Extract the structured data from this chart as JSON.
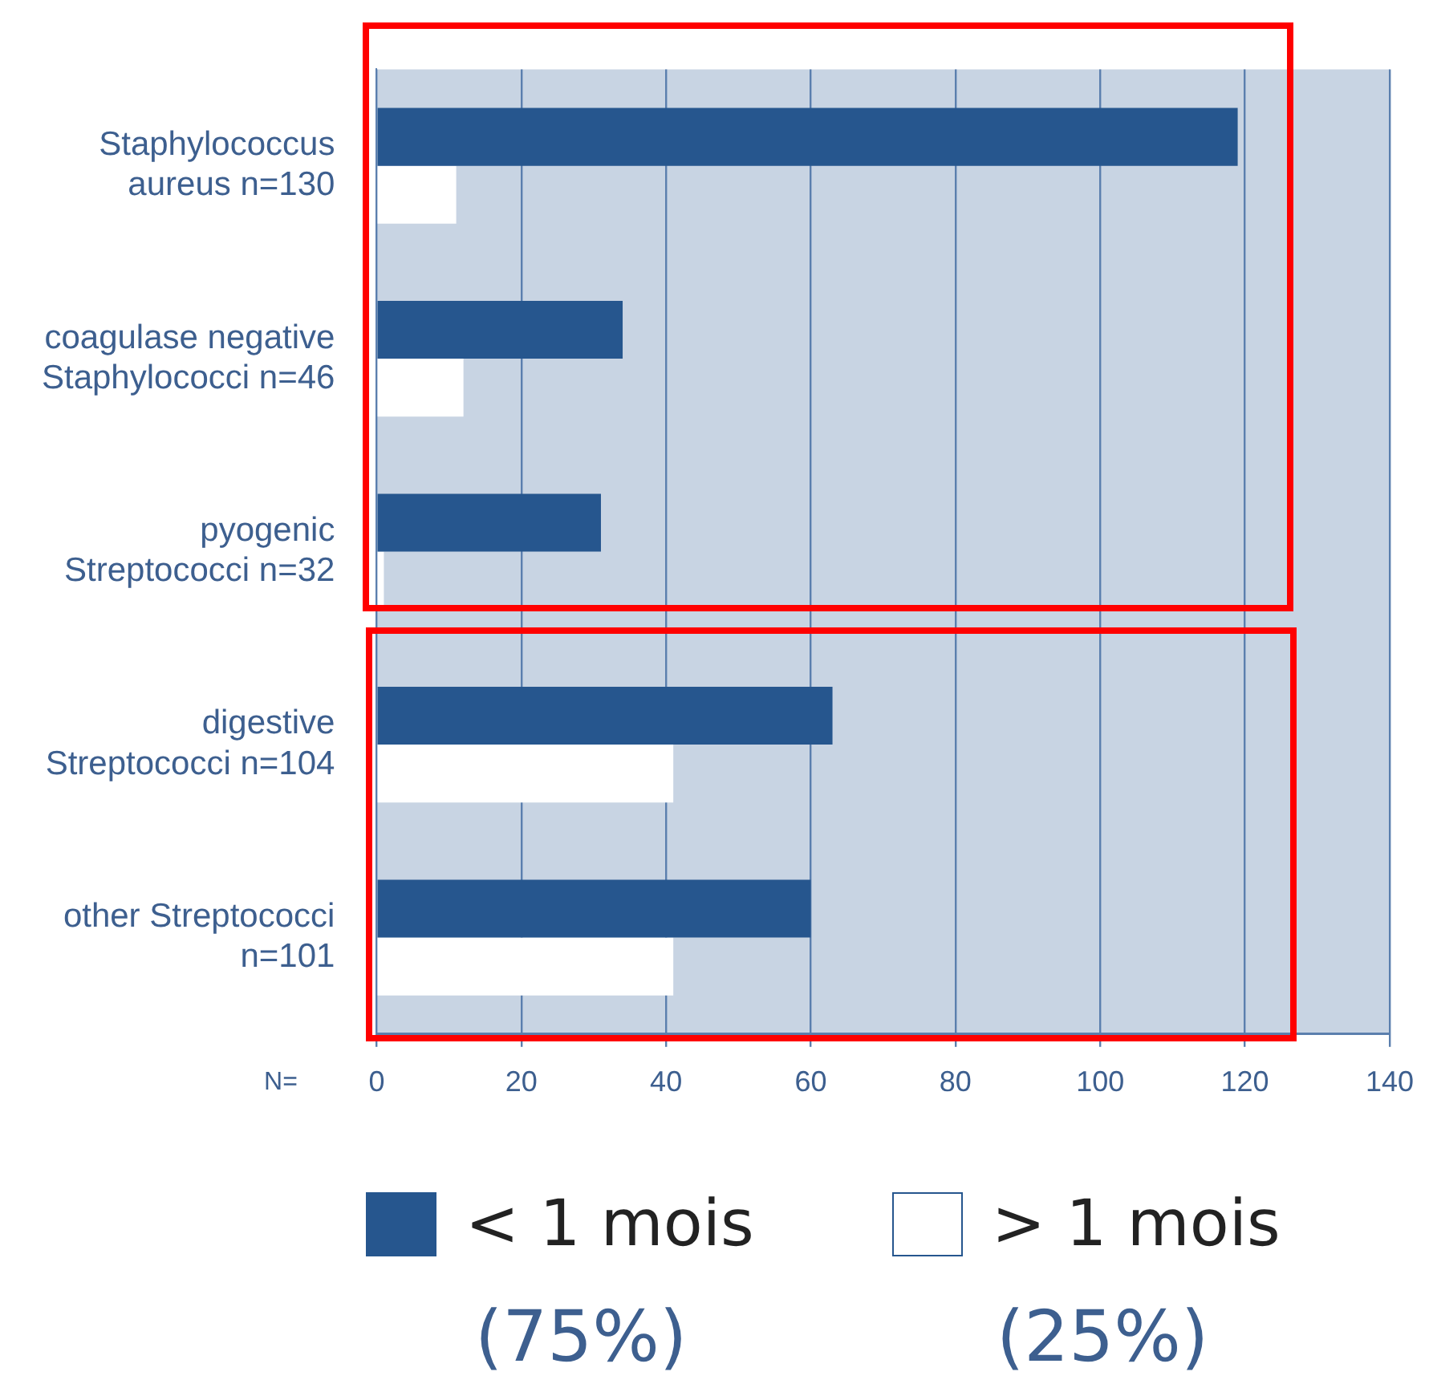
{
  "chart_data": {
    "type": "bar",
    "orientation": "horizontal",
    "xlabel": "N=",
    "categories": [
      "Staphylococcus\naureus n=130",
      "coagulase negative\nStaphylococci n=46",
      "pyogenic\nStreptococci n=32",
      "digestive\nStreptococci n=104",
      "other Streptococci\nn=101"
    ],
    "series": [
      {
        "name": "< 1 mois",
        "color": "#26568e",
        "values": [
          119,
          34,
          31,
          63,
          60
        ]
      },
      {
        "name": "> 1 mois",
        "color": "#ffffff",
        "values": [
          11,
          12,
          1,
          41,
          41
        ]
      }
    ],
    "xlim": [
      0,
      140
    ],
    "xticks": [
      0,
      20,
      40,
      60,
      80,
      100,
      120,
      140
    ],
    "grid": "x",
    "legend": "bottom",
    "annotations": [
      "(75%)",
      "(25%)"
    ]
  }
}
